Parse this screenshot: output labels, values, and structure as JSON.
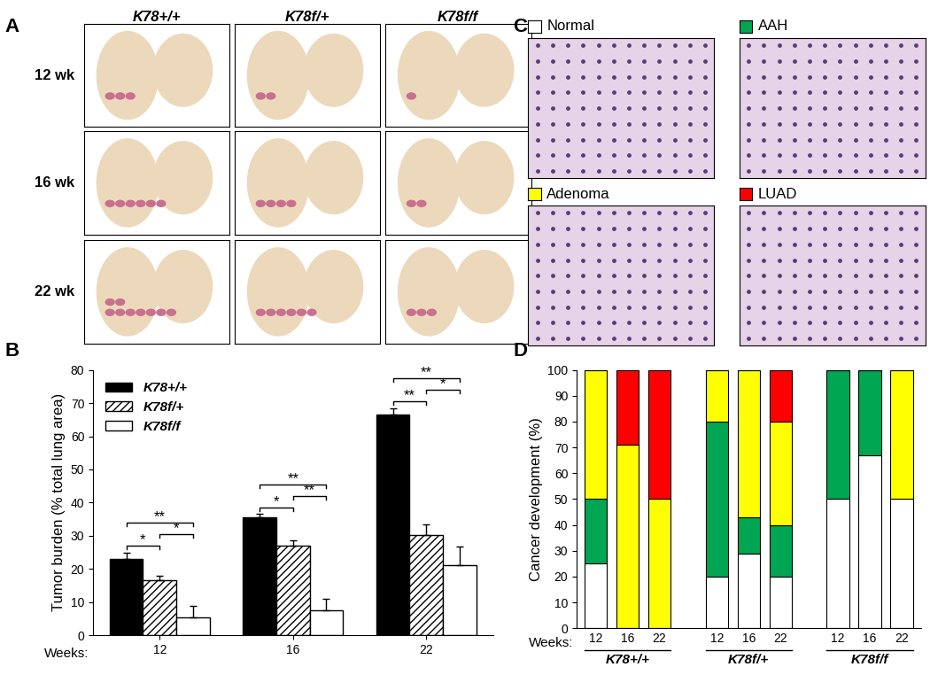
{
  "panel_labels": [
    "A",
    "B",
    "C",
    "D"
  ],
  "histology_grid": {
    "columns": [
      "K78+/+",
      "K78f/+",
      "K78f/f"
    ],
    "rows": [
      "12 wk",
      "16 wk",
      "22 wk"
    ]
  },
  "chart_data": [
    {
      "type": "bar",
      "ylabel": "Tumor burden (% total lung area)",
      "xlabel": "Weeks:",
      "categories": [
        "12",
        "16",
        "22"
      ],
      "series": [
        {
          "name": "K78+/+",
          "color": "#000000",
          "values": [
            23,
            35.5,
            66.5
          ],
          "errors": [
            2,
            1,
            2
          ]
        },
        {
          "name": "K78f/+",
          "color": "#ffffff",
          "values": [
            16.5,
            27,
            30.3
          ],
          "errors": [
            1.5,
            1.5,
            3
          ]
        },
        {
          "name": "K78f/f",
          "color": "#ffffff",
          "values": [
            5.3,
            7.5,
            21.2
          ],
          "errors": [
            3.5,
            3.5,
            5.5
          ]
        }
      ],
      "ylim": [
        0,
        80
      ],
      "yticks": [
        0,
        10,
        20,
        30,
        40,
        50,
        60,
        70,
        80
      ],
      "legend": "upper left",
      "significance": [
        {
          "category": "12",
          "between": [
            "K78+/+",
            "K78f/+"
          ],
          "label": "*"
        },
        {
          "category": "12",
          "between": [
            "K78f/+",
            "K78f/f"
          ],
          "label": "*"
        },
        {
          "category": "12",
          "between": [
            "K78+/+",
            "K78f/f"
          ],
          "label": "**"
        },
        {
          "category": "16",
          "between": [
            "K78+/+",
            "K78f/+"
          ],
          "label": "*"
        },
        {
          "category": "16",
          "between": [
            "K78f/+",
            "K78f/f"
          ],
          "label": "**"
        },
        {
          "category": "16",
          "between": [
            "K78+/+",
            "K78f/f"
          ],
          "label": "**"
        },
        {
          "category": "22",
          "between": [
            "K78+/+",
            "K78f/+"
          ],
          "label": "**"
        },
        {
          "category": "22",
          "between": [
            "K78f/+",
            "K78f/f"
          ],
          "label": "*"
        },
        {
          "category": "22",
          "between": [
            "K78+/+",
            "K78f/f"
          ],
          "label": "**"
        }
      ]
    },
    {
      "type": "bar",
      "stacked": true,
      "ylabel": "Cancer development (%)",
      "xlabel": "Weeks:",
      "categories": [
        "12",
        "16",
        "22",
        "12",
        "16",
        "22",
        "12",
        "16",
        "22"
      ],
      "groups": [
        "K78+/+",
        "K78f/+",
        "K78f/f"
      ],
      "series": [
        {
          "name": "Normal",
          "color": "#ffffff",
          "values": [
            25,
            0,
            0,
            20,
            29,
            20,
            50,
            67,
            50
          ]
        },
        {
          "name": "AAH",
          "color": "#00a651",
          "values": [
            25,
            0,
            0,
            60,
            14,
            20,
            50,
            33,
            0
          ]
        },
        {
          "name": "Adenoma",
          "color": "#ffff00",
          "values": [
            50,
            71,
            50,
            20,
            57,
            40,
            0,
            0,
            50
          ]
        },
        {
          "name": "LUAD",
          "color": "#ff0000",
          "values": [
            0,
            29,
            50,
            0,
            0,
            20,
            0,
            0,
            0
          ]
        }
      ],
      "ylim": [
        0,
        100
      ],
      "yticks": [
        0,
        10,
        20,
        30,
        40,
        50,
        60,
        70,
        80,
        90,
        100
      ]
    }
  ]
}
